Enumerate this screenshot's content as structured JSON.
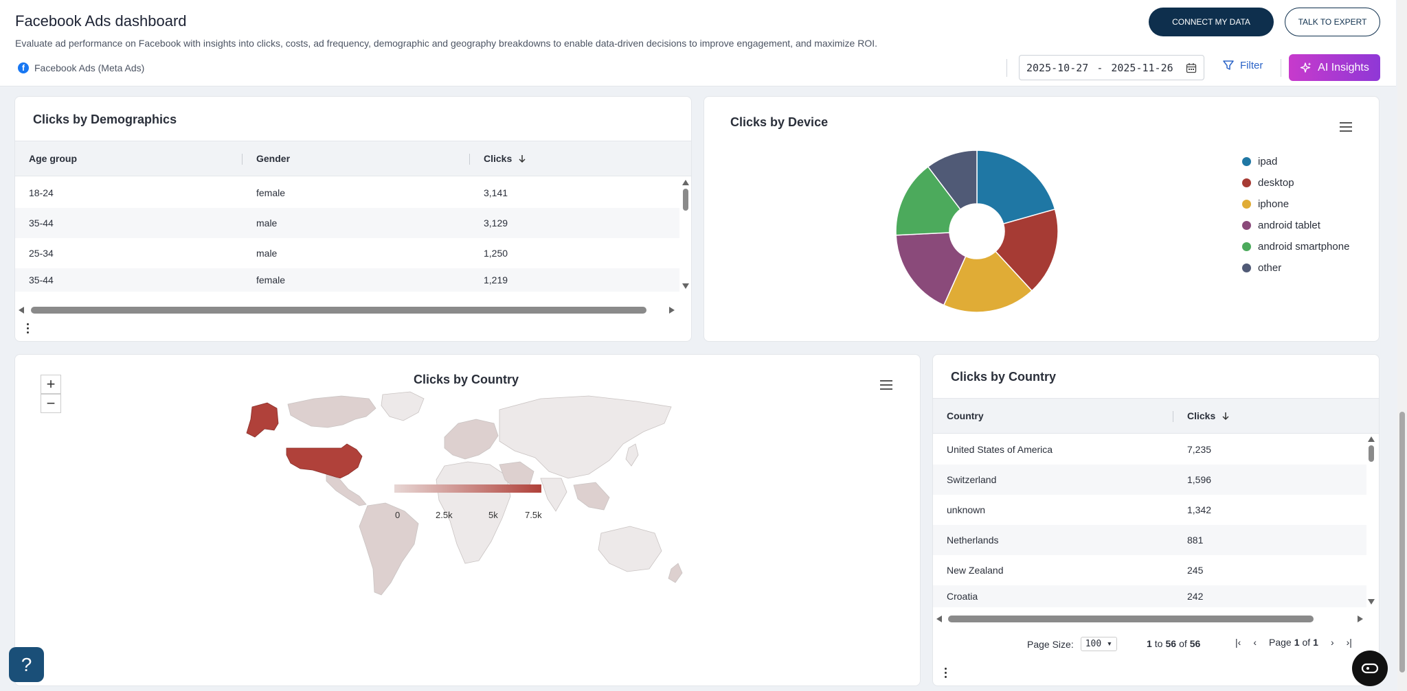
{
  "header": {
    "title": "Facebook Ads dashboard",
    "subtitle": "Evaluate ad performance on Facebook with insights into clicks, costs, ad frequency, demographic and geography breakdowns to enable data-driven decisions to improve engagement, and maximize ROI.",
    "source_label": "Facebook Ads (Meta Ads)",
    "connect_label": "CONNECT MY DATA",
    "expert_label": "TALK TO EXPERT",
    "date_start": "2025-10-27",
    "date_sep": "-",
    "date_end": "2025-11-26",
    "filter_label": "Filter",
    "ai_label": "AI Insights"
  },
  "demographics": {
    "title": "Clicks by Demographics",
    "columns": [
      "Age group",
      "Gender",
      "Clicks"
    ],
    "rows": [
      [
        "18-24",
        "female",
        "3,141"
      ],
      [
        "35-44",
        "male",
        "3,129"
      ],
      [
        "25-34",
        "male",
        "1,250"
      ],
      [
        "35-44",
        "female",
        "1,219"
      ]
    ]
  },
  "device": {
    "title": "Clicks by Device",
    "legend": [
      {
        "label": "ipad",
        "color": "#1f77a4"
      },
      {
        "label": "desktop",
        "color": "#a63b34"
      },
      {
        "label": "iphone",
        "color": "#e0ac36"
      },
      {
        "label": "android tablet",
        "color": "#8a4a7a"
      },
      {
        "label": "android smartphone",
        "color": "#4caa5c"
      },
      {
        "label": "other",
        "color": "#505a76"
      }
    ]
  },
  "chart_data": {
    "type": "pie",
    "categories": [
      "ipad",
      "desktop",
      "iphone",
      "android tablet",
      "android smartphone",
      "other"
    ],
    "values": [
      20,
      17,
      18,
      17,
      15,
      10
    ]
  },
  "country_map": {
    "title": "Clicks by Country",
    "zoom_in": "+",
    "zoom_out": "−",
    "scale_labels": [
      "0",
      "2.5k",
      "5k",
      "7.5k"
    ],
    "highlight_color": "#b0413a",
    "base_color": "#ddd0cf"
  },
  "country_table": {
    "title": "Clicks by Country",
    "columns": [
      "Country",
      "Clicks"
    ],
    "rows": [
      [
        "United States of America",
        "7,235"
      ],
      [
        "Switzerland",
        "1,596"
      ],
      [
        "unknown",
        "1,342"
      ],
      [
        "Netherlands",
        "881"
      ],
      [
        "New Zealand",
        "245"
      ],
      [
        "Croatia",
        "242"
      ]
    ],
    "page_size_label": "Page Size:",
    "page_size_value": "100",
    "range_from": "1",
    "range_to_word": "to",
    "range_to": "56",
    "range_of_word": "of",
    "range_total": "56",
    "page_word": "Page",
    "page_current": "1",
    "page_of_word": "of",
    "page_total": "1"
  },
  "help_label": "?"
}
